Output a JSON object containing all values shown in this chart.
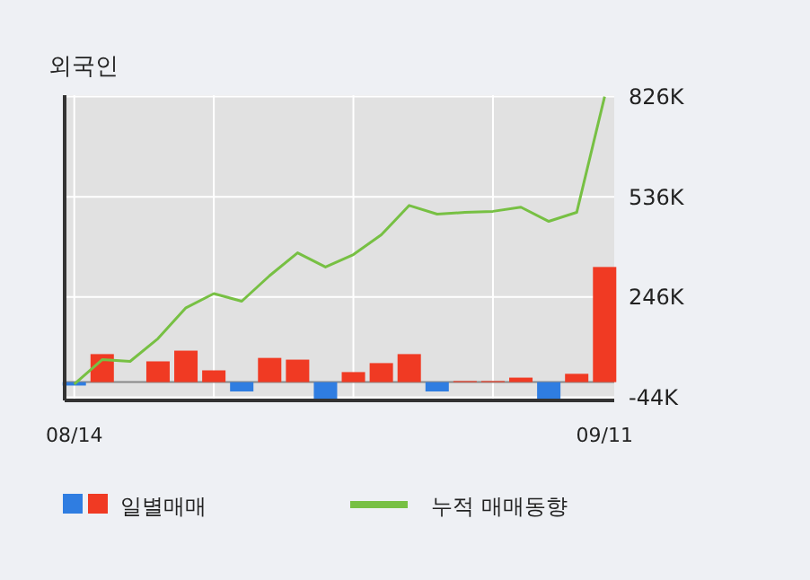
{
  "chart_data": {
    "type": "bar",
    "title": "외국인",
    "categories": [
      "08/14",
      null,
      null,
      null,
      null,
      null,
      null,
      null,
      null,
      null,
      null,
      null,
      null,
      null,
      null,
      null,
      null,
      null,
      null,
      "09/11"
    ],
    "series": [
      {
        "name": "일별매매",
        "colors": [
          "#2f7de1",
          "#f03a23",
          "#f03a23",
          "#f03a23",
          "#f03a23",
          "#f03a23",
          "#2f7de1",
          "#f03a23",
          "#f03a23",
          "#2f7de1",
          "#f03a23",
          "#f03a23",
          "#f03a23",
          "#2f7de1",
          "#f03a23",
          "#f03a23",
          "#f03a23",
          "#2f7de1",
          "#f03a23",
          "#f03a23"
        ],
        "values": [
          -10,
          81,
          0,
          60,
          91,
          34,
          -27,
          70,
          65,
          -48,
          29,
          55,
          81,
          -27,
          3,
          3,
          13,
          -48,
          24,
          333
        ]
      },
      {
        "name": "누적 매매동향",
        "type": "line",
        "color": "#77c043",
        "values": [
          -6,
          65,
          60,
          126,
          215,
          256,
          234,
          308,
          374,
          333,
          369,
          426,
          511,
          486,
          491,
          494,
          506,
          465,
          491,
          826
        ]
      }
    ],
    "ylim": [
      -53,
      830
    ],
    "yticks": [
      {
        "value": -44,
        "label": "-44K"
      },
      {
        "value": 246,
        "label": "246K"
      },
      {
        "value": 536,
        "label": "536K"
      },
      {
        "value": 826,
        "label": "826K"
      }
    ],
    "grid": true,
    "legend": "bottom",
    "marker": "none"
  }
}
